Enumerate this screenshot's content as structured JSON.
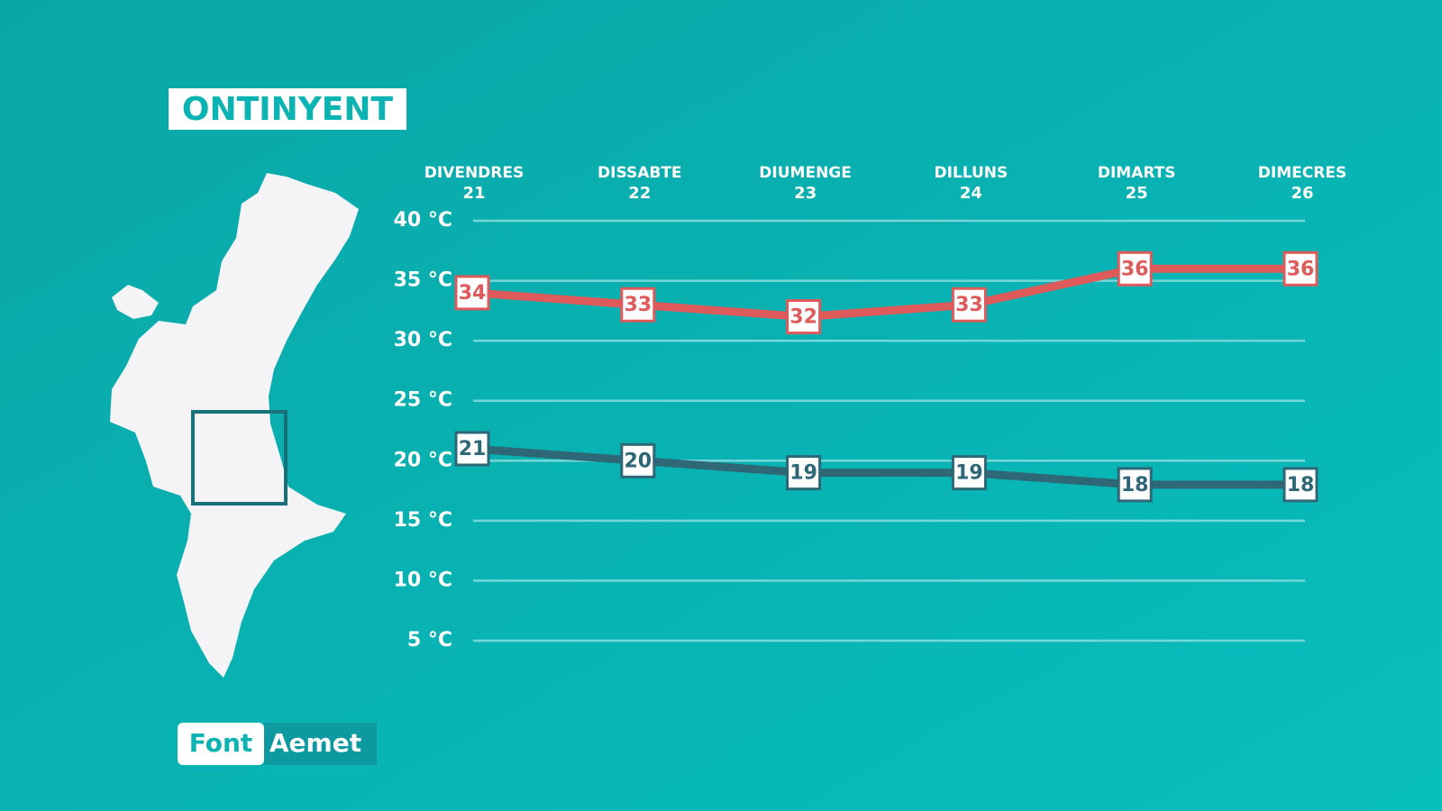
{
  "chart_data": {
    "type": "line",
    "title": "ONTINYENT",
    "categories": [
      [
        "DIVENDRES",
        "21"
      ],
      [
        "DISSABTE",
        "22"
      ],
      [
        "DIUMENGE",
        "23"
      ],
      [
        "DILLUNS",
        "24"
      ],
      [
        "DIMARTS",
        "25"
      ],
      [
        "DIMECRES",
        "26"
      ]
    ],
    "series": [
      {
        "color": "#df5b5b",
        "values": [
          34,
          33,
          32,
          33,
          36,
          36
        ]
      },
      {
        "color": "#2e6775",
        "values": [
          21,
          20,
          19,
          19,
          18,
          18
        ]
      }
    ],
    "ylim": [
      5,
      40
    ],
    "yticks": [
      {
        "value": 5,
        "label": "5 °C"
      },
      {
        "value": 10,
        "label": "10 °C"
      },
      {
        "value": 15,
        "label": "15 °C"
      },
      {
        "value": 20,
        "label": "20 °C"
      },
      {
        "value": 25,
        "label": "25 °C"
      },
      {
        "value": 30,
        "label": "30 °C"
      },
      {
        "value": 35,
        "label": "35 °C"
      },
      {
        "value": 40,
        "label": "40 °C"
      }
    ],
    "grid": true,
    "source_label": "Font",
    "source": "Aemet"
  }
}
